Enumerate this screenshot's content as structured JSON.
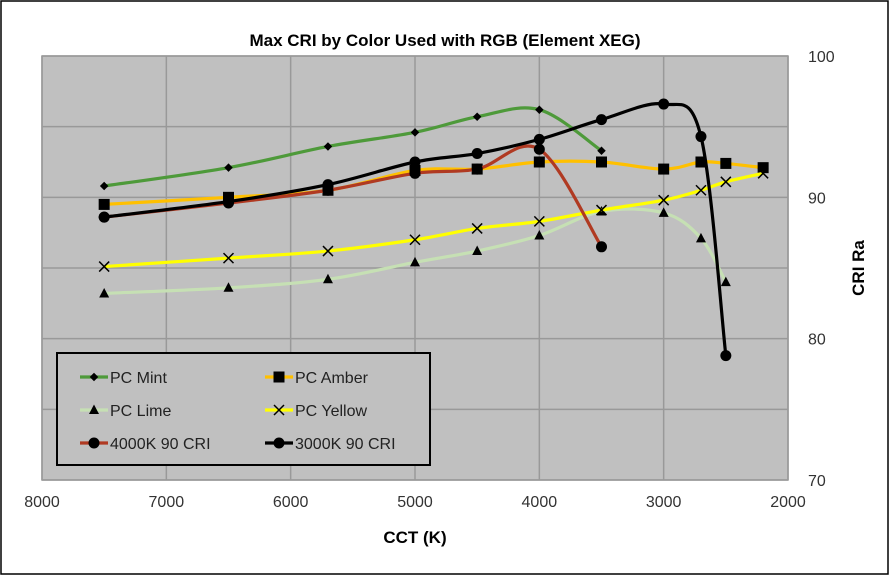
{
  "chart_data": {
    "type": "line",
    "title": "Max CRI by Color Used with RGB (Element XEG)",
    "xlabel": "CCT (K)",
    "ylabel": "CRI Ra",
    "xlim": [
      8000,
      2000
    ],
    "ylim": [
      70,
      100
    ],
    "x_ticks": [
      8000,
      7000,
      6000,
      5000,
      4000,
      3000,
      2000
    ],
    "y_ticks": [
      70,
      80,
      90,
      100
    ],
    "grid": true,
    "legend_position": "bottom-left",
    "series": [
      {
        "name": "PC Mint",
        "color": "#4e9a3a",
        "marker": "diamond",
        "x": [
          7500,
          6500,
          5700,
          5000,
          4500,
          4000,
          3500
        ],
        "y": [
          90.8,
          92.1,
          93.6,
          94.6,
          95.7,
          96.2,
          93.3
        ]
      },
      {
        "name": "PC Amber",
        "color": "#ffc000",
        "marker": "square",
        "x": [
          7500,
          6500,
          5700,
          5000,
          4500,
          4000,
          3500,
          3000,
          2700,
          2500,
          2200
        ],
        "y": [
          89.5,
          90.0,
          90.5,
          91.9,
          92.0,
          92.5,
          92.5,
          92.0,
          92.5,
          92.4,
          92.1
        ]
      },
      {
        "name": "PC Lime",
        "color": "#c6e0b4",
        "marker": "triangle",
        "x": [
          7500,
          6500,
          5700,
          5000,
          4500,
          4000,
          3500,
          3000,
          2700,
          2500
        ],
        "y": [
          83.2,
          83.6,
          84.2,
          85.4,
          86.2,
          87.3,
          89.0,
          88.9,
          87.1,
          84.0
        ]
      },
      {
        "name": "PC Yellow",
        "color": "#ffff00",
        "marker": "x",
        "x": [
          7500,
          6500,
          5700,
          5000,
          4500,
          4000,
          3500,
          3000,
          2700,
          2500,
          2200
        ],
        "y": [
          85.1,
          85.7,
          86.2,
          87.0,
          87.8,
          88.3,
          89.1,
          89.8,
          90.5,
          91.1,
          91.7
        ]
      },
      {
        "name": "4000K 90 CRI",
        "color": "#b03a22",
        "marker": "circle",
        "x": [
          7500,
          6500,
          5700,
          5000,
          4500,
          4000,
          3500
        ],
        "y": [
          88.6,
          89.6,
          90.5,
          91.7,
          92.0,
          93.4,
          86.5
        ]
      },
      {
        "name": "3000K 90 CRI",
        "color": "#000000",
        "marker": "circle",
        "x": [
          7500,
          6500,
          5700,
          5000,
          4500,
          4000,
          3500,
          3000,
          2700,
          2500
        ],
        "y": [
          88.6,
          89.7,
          90.9,
          92.5,
          93.1,
          94.1,
          95.5,
          96.6,
          94.3,
          78.8
        ]
      }
    ]
  }
}
